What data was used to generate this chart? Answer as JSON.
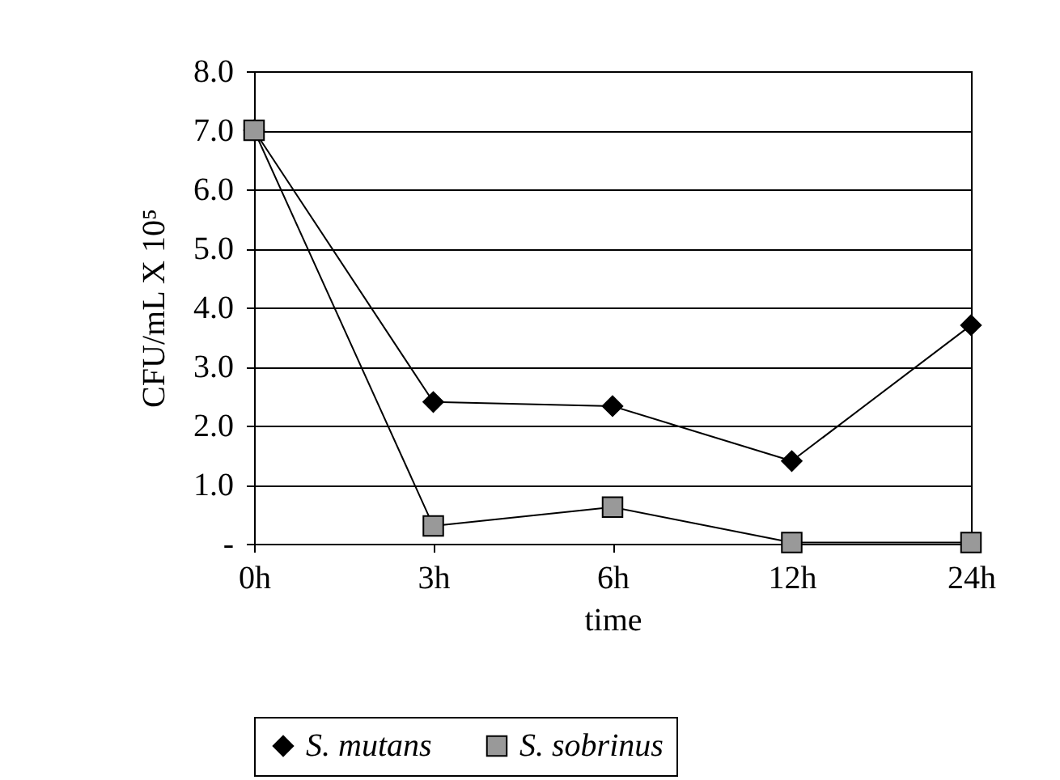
{
  "chart_data": {
    "type": "line",
    "xlabel": "time",
    "ylabel": "CFU/mL X 10⁵",
    "categories": [
      "0h",
      "3h",
      "6h",
      "12h",
      "24h"
    ],
    "series": [
      {
        "name": "S. mutans",
        "color": "#000000",
        "marker": "diamond",
        "values": [
          7.0,
          2.4,
          2.33,
          1.4,
          3.7
        ]
      },
      {
        "name": "S. sobrinus",
        "color": "#999999",
        "marker": "square",
        "values": [
          7.0,
          0.3,
          0.62,
          0.02,
          0.02
        ]
      }
    ],
    "ylim": [
      0,
      8
    ],
    "yticks": [
      {
        "value": 0,
        "label": "-"
      },
      {
        "value": 1,
        "label": "1.0"
      },
      {
        "value": 2,
        "label": "2.0"
      },
      {
        "value": 3,
        "label": "3.0"
      },
      {
        "value": 4,
        "label": "4.0"
      },
      {
        "value": 5,
        "label": "5.0"
      },
      {
        "value": 6,
        "label": "6.0"
      },
      {
        "value": 7,
        "label": "7.0"
      },
      {
        "value": 8,
        "label": "8.0"
      }
    ],
    "grid": "y",
    "legend": "bottom",
    "line_style": "solid"
  }
}
